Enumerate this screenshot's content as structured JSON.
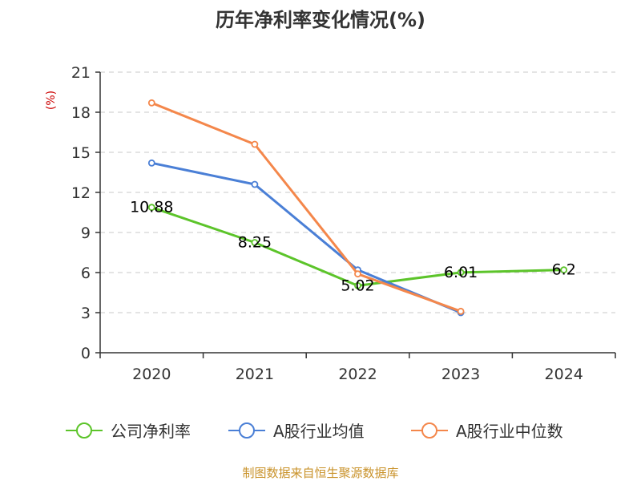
{
  "chart_data": {
    "type": "line",
    "title": "历年净利率变化情况(%)",
    "ylabel": "(%)",
    "categories": [
      "2020",
      "2021",
      "2022",
      "2023",
      "2024"
    ],
    "ylim": [
      0,
      21
    ],
    "yticks": [
      0,
      3,
      6,
      9,
      12,
      15,
      18,
      21
    ],
    "grid": true,
    "legend_position": "bottom",
    "series": [
      {
        "name": "公司净利率",
        "color": "#5cc42a",
        "values": [
          10.88,
          8.25,
          5.02,
          6.01,
          6.2
        ],
        "labels": [
          "10.88",
          "8.25",
          "5.02",
          "6.01",
          "6.2"
        ]
      },
      {
        "name": "A股行业均值",
        "color": "#4a7fd6",
        "values": [
          14.2,
          12.6,
          6.2,
          3.0,
          null
        ]
      },
      {
        "name": "A股行业中位数",
        "color": "#f4874b",
        "values": [
          18.7,
          15.6,
          5.9,
          3.1,
          null
        ]
      }
    ]
  },
  "colors": {
    "axis": "#333333",
    "grid": "#c8c8c8",
    "ylabel": "#cc0000",
    "source": "#c9922a"
  },
  "source_text": "制图数据来自恒生聚源数据库"
}
